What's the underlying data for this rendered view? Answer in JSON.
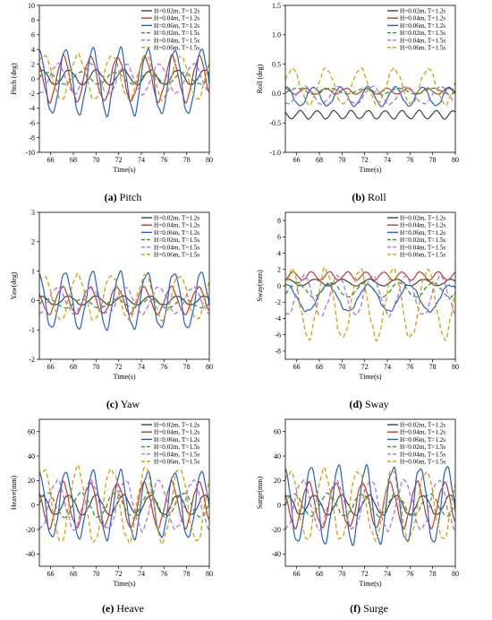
{
  "legend_entries": [
    {
      "name": "H=0.02m, T=1.2s",
      "color": "#404040",
      "dash": "solid"
    },
    {
      "name": "H=0.04m, T=1.2s",
      "color": "#c0392b",
      "dash": "solid"
    },
    {
      "name": "H=0.06m, T=1.2s",
      "color": "#1f5fd0",
      "dash": "solid"
    },
    {
      "name": "H=0.02m, T=1.5s",
      "color": "#2e9a2e",
      "dash": "dashed"
    },
    {
      "name": "H=0.04m, T=1.5s",
      "color": "#b070e0",
      "dash": "dashed"
    },
    {
      "name": "H=0.06m, T=1.5s",
      "color": "#d4a000",
      "dash": "dashed"
    }
  ],
  "chart_data": [
    {
      "type": "line",
      "panel_letter": "(a)",
      "panel_name": "Pitch",
      "xlabel": "Time(s)",
      "ylabel": "Pitch (deg)",
      "xlim": [
        65,
        80
      ],
      "ylim": [
        -10,
        10
      ],
      "xticks": [
        66,
        68,
        70,
        72,
        74,
        76,
        78,
        80
      ],
      "yticks": [
        -10,
        -8,
        -6,
        -4,
        -2,
        0,
        2,
        4,
        6,
        8,
        10
      ],
      "series_params": [
        {
          "name": "H=0.02m, T=1.2s",
          "amp": 1.0,
          "period": 2.4,
          "phase": 0.5,
          "offset": 0.2
        },
        {
          "name": "H=0.04m, T=1.2s",
          "amp": 3.0,
          "period": 2.4,
          "phase": 1.8,
          "offset": 0.0
        },
        {
          "name": "H=0.06m, T=1.2s",
          "amp": 4.4,
          "period": 2.4,
          "phase": 1.2,
          "offset": -0.4
        },
        {
          "name": "H=0.02m, T=1.5s",
          "amp": 0.8,
          "period": 3.0,
          "phase": 2.2,
          "offset": 0.1
        },
        {
          "name": "H=0.04m, T=1.5s",
          "amp": 2.0,
          "period": 3.0,
          "phase": 0.3,
          "offset": 0.0
        },
        {
          "name": "H=0.06m, T=1.5s",
          "amp": 3.0,
          "period": 3.0,
          "phase": 2.8,
          "offset": 0.2
        }
      ]
    },
    {
      "type": "line",
      "panel_letter": "(b)",
      "panel_name": "Roll",
      "xlabel": "Time(s)",
      "ylabel": "Roll (deg)",
      "xlim": [
        65,
        80
      ],
      "ylim": [
        -1.0,
        1.5
      ],
      "xticks": [
        66,
        68,
        70,
        72,
        74,
        76,
        78,
        80
      ],
      "yticks": [
        -1.0,
        -0.5,
        0.0,
        0.5,
        1.0,
        1.5
      ],
      "series_params": [
        {
          "name": "H=0.02m, T=1.2s",
          "amp": 0.07,
          "period": 1.5,
          "phase": 0.3,
          "offset": -0.36
        },
        {
          "name": "H=0.04m, T=1.2s",
          "amp": 0.05,
          "period": 1.8,
          "phase": 1.0,
          "offset": 0.04
        },
        {
          "name": "H=0.06m, T=1.2s",
          "amp": 0.16,
          "period": 2.4,
          "phase": 0.8,
          "offset": -0.05
        },
        {
          "name": "H=0.02m, T=1.5s",
          "amp": 0.05,
          "period": 3.0,
          "phase": 1.5,
          "offset": 0.04
        },
        {
          "name": "H=0.04m, T=1.5s",
          "amp": 0.15,
          "period": 3.0,
          "phase": 0.1,
          "offset": -0.03
        },
        {
          "name": "H=0.06m, T=1.5s",
          "amp": 0.3,
          "period": 3.0,
          "phase": 2.4,
          "offset": 0.12
        }
      ]
    },
    {
      "type": "line",
      "panel_letter": "(c)",
      "panel_name": "Yaw",
      "xlabel": "Time(s)",
      "ylabel": "Yaw(deg)",
      "xlim": [
        65,
        80
      ],
      "ylim": [
        -2,
        3
      ],
      "xticks": [
        66,
        68,
        70,
        72,
        74,
        76,
        78,
        80
      ],
      "yticks": [
        -2,
        -1,
        0,
        1,
        2,
        3
      ],
      "series_params": [
        {
          "name": "H=0.02m, T=1.2s",
          "amp": 0.15,
          "period": 2.4,
          "phase": 0.6,
          "offset": 0.0
        },
        {
          "name": "H=0.04m, T=1.2s",
          "amp": 0.45,
          "period": 2.4,
          "phase": 2.0,
          "offset": 0.0
        },
        {
          "name": "H=0.06m, T=1.2s",
          "amp": 0.95,
          "period": 2.4,
          "phase": 1.3,
          "offset": 0.0
        },
        {
          "name": "H=0.02m, T=1.5s",
          "amp": 0.15,
          "period": 3.0,
          "phase": 2.0,
          "offset": -0.1
        },
        {
          "name": "H=0.04m, T=1.5s",
          "amp": 0.45,
          "period": 3.0,
          "phase": 0.4,
          "offset": 0.0
        },
        {
          "name": "H=0.06m, T=1.5s",
          "amp": 0.75,
          "period": 3.0,
          "phase": 2.9,
          "offset": 0.1
        }
      ]
    },
    {
      "type": "line",
      "panel_letter": "(d)",
      "panel_name": "Sway",
      "xlabel": "Time(s)",
      "ylabel": "Sway(mm)",
      "xlim": [
        65,
        80
      ],
      "ylim": [
        -9,
        9
      ],
      "xticks": [
        66,
        68,
        70,
        72,
        74,
        76,
        78,
        80
      ],
      "yticks": [
        -8,
        -6,
        -4,
        -2,
        0,
        2,
        4,
        6,
        8
      ],
      "series_params": [
        {
          "name": "H=0.02m, T=1.2s",
          "amp": 0.4,
          "period": 2.4,
          "phase": 0.5,
          "offset": 0.4
        },
        {
          "name": "H=0.04m, T=1.2s",
          "amp": 0.5,
          "period": 1.6,
          "phase": 1.2,
          "offset": 1.2
        },
        {
          "name": "H=0.06m, T=1.2s",
          "amp": 1.6,
          "period": 3.6,
          "phase": 1.0,
          "offset": -1.5
        },
        {
          "name": "H=0.02m, T=1.5s",
          "amp": 0.9,
          "period": 3.0,
          "phase": 1.5,
          "offset": -0.5
        },
        {
          "name": "H=0.04m, T=1.5s",
          "amp": 2.4,
          "period": 3.0,
          "phase": 0.2,
          "offset": -1.2
        },
        {
          "name": "H=0.06m, T=1.5s",
          "amp": 4.2,
          "period": 3.0,
          "phase": 2.5,
          "offset": -2.2
        }
      ]
    },
    {
      "type": "line",
      "panel_letter": "(e)",
      "panel_name": "Heave",
      "xlabel": "Time(s)",
      "ylabel": "Heave(mm)",
      "xlim": [
        65,
        80
      ],
      "ylim": [
        -50,
        70
      ],
      "xticks": [
        66,
        68,
        70,
        72,
        74,
        76,
        78,
        80
      ],
      "yticks": [
        -40,
        -20,
        0,
        20,
        40,
        60
      ],
      "series_params": [
        {
          "name": "H=0.02m, T=1.2s",
          "amp": 8,
          "period": 2.4,
          "phase": 0.5,
          "offset": 0
        },
        {
          "name": "H=0.04m, T=1.2s",
          "amp": 18,
          "period": 2.4,
          "phase": 1.9,
          "offset": 0
        },
        {
          "name": "H=0.06m, T=1.2s",
          "amp": 27,
          "period": 2.4,
          "phase": 1.2,
          "offset": 0
        },
        {
          "name": "H=0.02m, T=1.5s",
          "amp": 10,
          "period": 3.0,
          "phase": 2.2,
          "offset": 0
        },
        {
          "name": "H=0.04m, T=1.5s",
          "amp": 20,
          "period": 3.0,
          "phase": 0.4,
          "offset": 0
        },
        {
          "name": "H=0.06m, T=1.5s",
          "amp": 30,
          "period": 3.0,
          "phase": 2.9,
          "offset": 0
        }
      ]
    },
    {
      "type": "line",
      "panel_letter": "(f)",
      "panel_name": "Surge",
      "xlabel": "Time(s)",
      "ylabel": "Surge(mm)",
      "xlim": [
        65,
        80
      ],
      "ylim": [
        -50,
        70
      ],
      "xticks": [
        66,
        68,
        70,
        72,
        74,
        76,
        78,
        80
      ],
      "yticks": [
        -40,
        -20,
        0,
        20,
        40,
        60
      ],
      "series_params": [
        {
          "name": "H=0.02m, T=1.2s",
          "amp": 8,
          "period": 2.4,
          "phase": 0.6,
          "offset": 0
        },
        {
          "name": "H=0.04m, T=1.2s",
          "amp": 18,
          "period": 2.4,
          "phase": 2.0,
          "offset": 0
        },
        {
          "name": "H=0.06m, T=1.2s",
          "amp": 31,
          "period": 2.4,
          "phase": 1.3,
          "offset": 0
        },
        {
          "name": "H=0.02m, T=1.5s",
          "amp": 9,
          "period": 3.0,
          "phase": 2.1,
          "offset": 0
        },
        {
          "name": "H=0.04m, T=1.5s",
          "amp": 20,
          "period": 3.0,
          "phase": 0.5,
          "offset": 0
        },
        {
          "name": "H=0.06m, T=1.5s",
          "amp": 28,
          "period": 3.0,
          "phase": 2.8,
          "offset": 0
        }
      ]
    }
  ]
}
